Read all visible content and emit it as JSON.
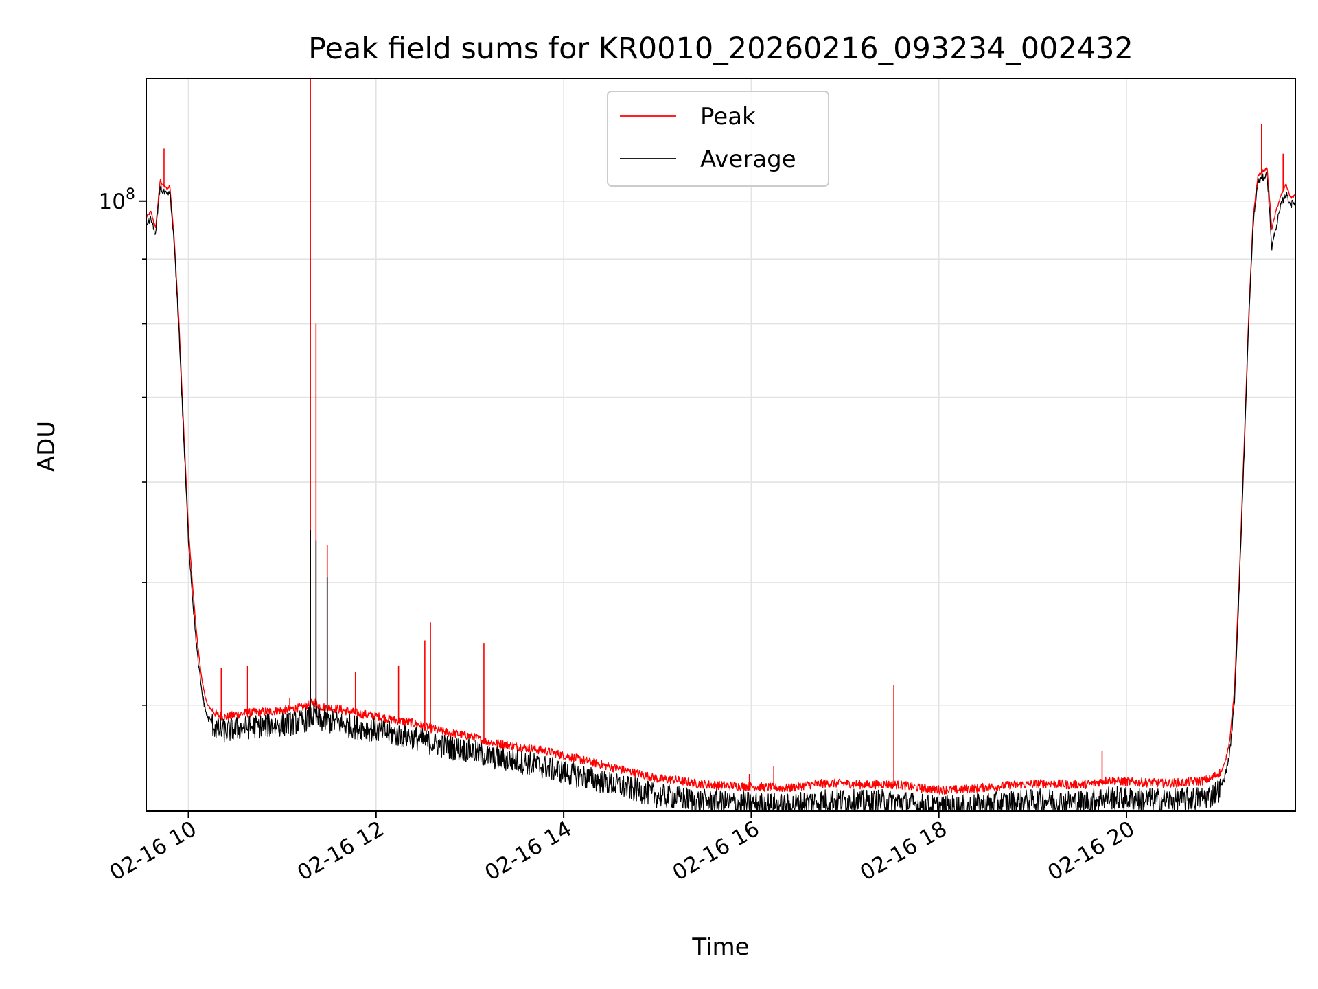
{
  "chart_data": {
    "type": "line",
    "title": "Peak field sums for KR0010_20260216_093234_002432",
    "xlabel": "Time",
    "ylabel": "ADU",
    "yscale": "log",
    "ylim": [
      33000000,
      125000000
    ],
    "xlim_hours": [
      9.55,
      21.8
    ],
    "grid": true,
    "legend_location": "upper-center",
    "x_ticks": [
      {
        "hour": 10,
        "label": "02-16 10"
      },
      {
        "hour": 12,
        "label": "02-16 12"
      },
      {
        "hour": 14,
        "label": "02-16 14"
      },
      {
        "hour": 16,
        "label": "02-16 16"
      },
      {
        "hour": 18,
        "label": "02-16 18"
      },
      {
        "hour": 20,
        "label": "02-16 20"
      }
    ],
    "y_major_ticks": [
      {
        "value": 100000000,
        "base": "10",
        "exp": "8"
      }
    ],
    "y_minor_ticks": [
      40000000,
      50000000,
      60000000,
      70000000,
      80000000,
      90000000
    ],
    "series": [
      {
        "name": "Peak",
        "color": "#ff0000",
        "x": [
          9.55,
          9.6,
          9.65,
          9.7,
          9.72,
          9.75,
          9.78,
          9.8,
          9.85,
          9.9,
          9.95,
          10.0,
          10.05,
          10.1,
          10.15,
          10.2,
          10.3,
          10.4,
          10.5,
          10.6,
          10.8,
          11.0,
          11.2,
          11.35,
          11.4,
          11.6,
          11.8,
          12.0,
          12.2,
          12.4,
          12.6,
          12.8,
          13.0,
          13.2,
          13.4,
          13.6,
          13.8,
          14.0,
          14.2,
          14.4,
          14.6,
          14.8,
          15.0,
          15.2,
          15.4,
          15.6,
          15.8,
          16.0,
          16.2,
          16.4,
          16.6,
          16.8,
          17.0,
          17.2,
          17.4,
          17.6,
          17.8,
          18.0,
          18.2,
          18.4,
          18.6,
          18.8,
          19.0,
          19.2,
          19.4,
          19.6,
          19.8,
          20.0,
          20.2,
          20.4,
          20.6,
          20.8,
          20.9,
          21.0,
          21.05,
          21.1,
          21.15,
          21.2,
          21.25,
          21.3,
          21.35,
          21.4,
          21.45,
          21.5,
          21.55,
          21.6,
          21.65,
          21.7,
          21.75,
          21.8
        ],
        "y": [
          97000000,
          98000000,
          95000000,
          104000000,
          103000000,
          102500000,
          102000000,
          103000000,
          93000000,
          80000000,
          66000000,
          55000000,
          49000000,
          44500000,
          41500000,
          40000000,
          39200000,
          39000000,
          39200000,
          39300000,
          39400000,
          39500000,
          39700000,
          40100000,
          39800000,
          39600000,
          39300000,
          39100000,
          38800000,
          38600000,
          38200000,
          37900000,
          37700000,
          37300000,
          37100000,
          36900000,
          36700000,
          36400000,
          36100000,
          35800000,
          35500000,
          35200000,
          34900000,
          34800000,
          34600000,
          34500000,
          34450000,
          34400000,
          34350000,
          34300000,
          34500000,
          34600000,
          34600000,
          34500000,
          34550000,
          34500000,
          34300000,
          34200000,
          34200000,
          34300000,
          34400000,
          34500000,
          34550000,
          34600000,
          34500000,
          34550000,
          34800000,
          34700000,
          34650000,
          34600000,
          34650000,
          34750000,
          34900000,
          35300000,
          36000000,
          37500000,
          41000000,
          50000000,
          63000000,
          80000000,
          97000000,
          104500000,
          105500000,
          106000000,
          95000000,
          98500000,
          101000000,
          103000000,
          100500000,
          101000000
        ]
      },
      {
        "name": "Average",
        "color": "#000000",
        "x": [
          9.55,
          9.6,
          9.65,
          9.7,
          9.72,
          9.75,
          9.78,
          9.8,
          9.85,
          9.9,
          9.95,
          10.0,
          10.05,
          10.1,
          10.15,
          10.2,
          10.3,
          10.4,
          10.5,
          10.6,
          10.8,
          11.0,
          11.2,
          11.35,
          11.4,
          11.6,
          11.8,
          12.0,
          12.2,
          12.4,
          12.6,
          12.8,
          13.0,
          13.2,
          13.4,
          13.6,
          13.8,
          14.0,
          14.2,
          14.4,
          14.6,
          14.8,
          15.0,
          15.2,
          15.4,
          15.6,
          15.8,
          16.0,
          16.2,
          16.4,
          16.6,
          16.8,
          17.0,
          17.2,
          17.4,
          17.6,
          17.8,
          18.0,
          18.2,
          18.4,
          18.6,
          18.8,
          19.0,
          19.2,
          19.4,
          19.6,
          19.8,
          20.0,
          20.2,
          20.4,
          20.6,
          20.8,
          20.9,
          21.0,
          21.05,
          21.1,
          21.15,
          21.2,
          21.25,
          21.3,
          21.35,
          21.4,
          21.45,
          21.5,
          21.55,
          21.6,
          21.65,
          21.7,
          21.75,
          21.8
        ],
        "y": [
          96000000,
          97000000,
          94000000,
          103000000,
          102000000,
          101500000,
          101000000,
          102000000,
          92000000,
          79000000,
          65000000,
          54000000,
          48000000,
          43500000,
          40700000,
          39200000,
          38500000,
          38300000,
          38500000,
          38600000,
          38700000,
          38800000,
          39000000,
          39400000,
          39100000,
          38900000,
          38600000,
          38400000,
          38100000,
          37900000,
          37500000,
          37200000,
          37000000,
          36600000,
          36400000,
          36200000,
          35900000,
          35600000,
          35300000,
          35000000,
          34700000,
          34400000,
          34100000,
          34000000,
          33800000,
          33700000,
          33650000,
          33600000,
          33550000,
          33500000,
          33700000,
          33800000,
          33800000,
          33700000,
          33750000,
          33700000,
          33500000,
          33400000,
          33400000,
          33500000,
          33600000,
          33700000,
          33750000,
          33800000,
          33700000,
          33750000,
          34000000,
          33900000,
          33850000,
          33800000,
          33850000,
          33950000,
          34100000,
          34500000,
          35200000,
          36700000,
          40200000,
          49200000,
          62200000,
          79200000,
          96000000,
          103500000,
          104500000,
          105000000,
          92000000,
          96000000,
          99500000,
          101500000,
          99500000,
          100000000
        ]
      }
    ],
    "spikes": [
      {
        "series": "Peak",
        "hour": 9.74,
        "value": 110000000
      },
      {
        "series": "Peak",
        "hour": 10.35,
        "value": 42800000
      },
      {
        "series": "Peak",
        "hour": 10.63,
        "value": 43000000
      },
      {
        "series": "Peak",
        "hour": 11.08,
        "value": 40500000
      },
      {
        "series": "Peak",
        "hour": 11.3,
        "value": 125000000
      },
      {
        "series": "Average",
        "hour": 11.3,
        "value": 55000000
      },
      {
        "series": "Peak",
        "hour": 11.36,
        "value": 80000000
      },
      {
        "series": "Average",
        "hour": 11.36,
        "value": 54000000
      },
      {
        "series": "Peak",
        "hour": 11.48,
        "value": 53500000
      },
      {
        "series": "Average",
        "hour": 11.48,
        "value": 50500000
      },
      {
        "series": "Peak",
        "hour": 11.78,
        "value": 42500000
      },
      {
        "series": "Peak",
        "hour": 12.24,
        "value": 43000000
      },
      {
        "series": "Peak",
        "hour": 12.52,
        "value": 45000000
      },
      {
        "series": "Peak",
        "hour": 12.58,
        "value": 46500000
      },
      {
        "series": "Peak",
        "hour": 13.15,
        "value": 44800000
      },
      {
        "series": "Peak",
        "hour": 15.98,
        "value": 35300000
      },
      {
        "series": "Peak",
        "hour": 16.24,
        "value": 35800000
      },
      {
        "series": "Peak",
        "hour": 17.52,
        "value": 41500000
      },
      {
        "series": "Peak",
        "hour": 19.74,
        "value": 36800000
      },
      {
        "series": "Peak",
        "hour": 21.44,
        "value": 115000000
      },
      {
        "series": "Peak",
        "hour": 21.67,
        "value": 109000000
      }
    ]
  }
}
